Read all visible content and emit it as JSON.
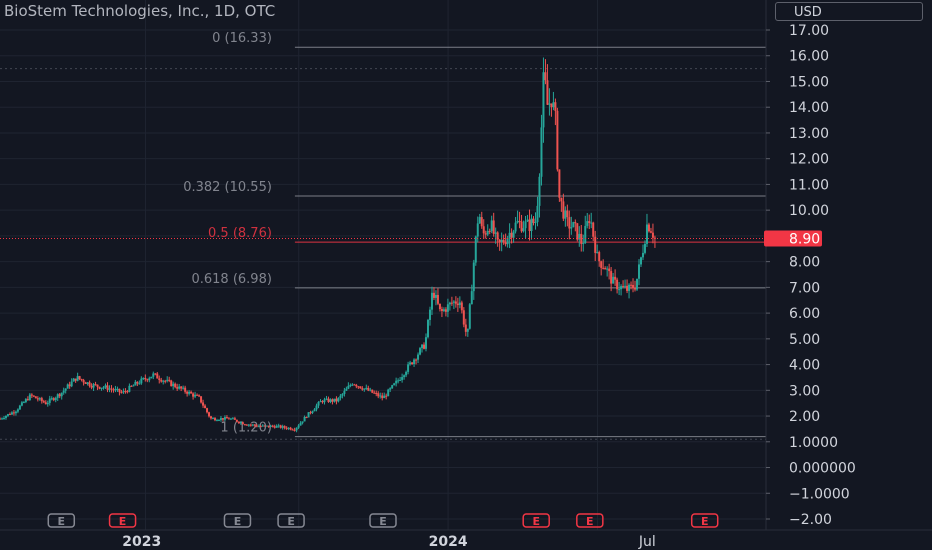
{
  "header": {
    "title": "BioStem Technologies, Inc., 1D, OTC",
    "currency": "USD"
  },
  "colors": {
    "background": "#131722",
    "up": "#26a69a",
    "down": "#ef5350",
    "grid": "#1f2431",
    "axis_text": "#d1d4dc",
    "fib_line": "#9598a1",
    "fib_mid": "#f23645",
    "last_price_badge": "#f23645"
  },
  "chart_data": {
    "type": "candlestick",
    "symbol": "BioStem Technologies, Inc.",
    "interval": "1D",
    "exchange": "OTC",
    "ylim": [
      -2.3,
      17.5
    ],
    "y_ticks": [
      {
        "value": 17,
        "label": "17.00"
      },
      {
        "value": 16,
        "label": "16.00"
      },
      {
        "value": 15,
        "label": "15.00"
      },
      {
        "value": 14,
        "label": "14.00"
      },
      {
        "value": 13,
        "label": "13.00"
      },
      {
        "value": 12,
        "label": "12.00"
      },
      {
        "value": 11,
        "label": "11.00"
      },
      {
        "value": 10,
        "label": "10.00"
      },
      {
        "value": 9,
        "label": "9.00"
      },
      {
        "value": 8,
        "label": "8.00"
      },
      {
        "value": 7,
        "label": "7.00"
      },
      {
        "value": 6,
        "label": "6.00"
      },
      {
        "value": 5,
        "label": "5.00"
      },
      {
        "value": 4,
        "label": "4.00"
      },
      {
        "value": 3,
        "label": "3.00"
      },
      {
        "value": 2,
        "label": "2.00"
      },
      {
        "value": 1,
        "label": "1.0000"
      },
      {
        "value": 0,
        "label": "0.000000"
      },
      {
        "value": -1,
        "label": "−1.0000"
      },
      {
        "value": -2,
        "label": "−2.00"
      }
    ],
    "x_labels": [
      {
        "label": "2023",
        "t": 0.185
      },
      {
        "label": "2024",
        "t": 0.585
      },
      {
        "label": "Jul",
        "t": 0.845
      }
    ],
    "last_price": {
      "value": 8.9,
      "label": "8.90"
    },
    "fibonacci": [
      {
        "ratio": "0",
        "price": 16.33,
        "label": "0 (16.33)"
      },
      {
        "ratio": "0.382",
        "price": 10.55,
        "label": "0.382 (10.55)"
      },
      {
        "ratio": "0.5",
        "price": 8.76,
        "label": "0.5 (8.76)"
      },
      {
        "ratio": "0.618",
        "price": 6.98,
        "label": "0.618 (6.98)"
      },
      {
        "ratio": "1",
        "price": 1.2,
        "label": "1 (1.20)"
      }
    ],
    "earnings_markers": [
      {
        "label": "E",
        "t": 0.08,
        "kind": "past"
      },
      {
        "label": "E",
        "t": 0.16,
        "kind": "future"
      },
      {
        "label": "E",
        "t": 0.31,
        "kind": "past"
      },
      {
        "label": "E",
        "t": 0.38,
        "kind": "past"
      },
      {
        "label": "E",
        "t": 0.5,
        "kind": "past"
      },
      {
        "label": "E",
        "t": 0.7,
        "kind": "future"
      },
      {
        "label": "E",
        "t": 0.77,
        "kind": "future"
      },
      {
        "label": "E",
        "t": 0.92,
        "kind": "future"
      }
    ],
    "price_path": [
      [
        0.0,
        1.9
      ],
      [
        0.02,
        2.2
      ],
      [
        0.04,
        2.8
      ],
      [
        0.06,
        2.5
      ],
      [
        0.08,
        2.9
      ],
      [
        0.1,
        3.5
      ],
      [
        0.12,
        3.2
      ],
      [
        0.14,
        3.1
      ],
      [
        0.16,
        2.9
      ],
      [
        0.18,
        3.3
      ],
      [
        0.2,
        3.6
      ],
      [
        0.22,
        3.3
      ],
      [
        0.24,
        3.0
      ],
      [
        0.26,
        2.7
      ],
      [
        0.275,
        1.9
      ],
      [
        0.3,
        1.9
      ],
      [
        0.32,
        1.7
      ],
      [
        0.34,
        1.6
      ],
      [
        0.36,
        1.6
      ],
      [
        0.385,
        1.5
      ],
      [
        0.4,
        2.0
      ],
      [
        0.42,
        2.6
      ],
      [
        0.44,
        2.6
      ],
      [
        0.46,
        3.3
      ],
      [
        0.48,
        3.0
      ],
      [
        0.5,
        2.7
      ],
      [
        0.52,
        3.4
      ],
      [
        0.54,
        4.2
      ],
      [
        0.555,
        4.8
      ],
      [
        0.565,
        6.9
      ],
      [
        0.575,
        6.0
      ],
      [
        0.59,
        6.4
      ],
      [
        0.6,
        6.5
      ],
      [
        0.61,
        5.0
      ],
      [
        0.62,
        8.5
      ],
      [
        0.625,
        10.0
      ],
      [
        0.63,
        9.0
      ],
      [
        0.64,
        9.5
      ],
      [
        0.65,
        8.6
      ],
      [
        0.66,
        8.9
      ],
      [
        0.675,
        9.5
      ],
      [
        0.69,
        9.4
      ],
      [
        0.7,
        9.6
      ],
      [
        0.705,
        12.0
      ],
      [
        0.71,
        15.3
      ],
      [
        0.715,
        14.0
      ],
      [
        0.72,
        14.4
      ],
      [
        0.725,
        13.5
      ],
      [
        0.73,
        10.5
      ],
      [
        0.74,
        9.5
      ],
      [
        0.75,
        9.3
      ],
      [
        0.76,
        8.7
      ],
      [
        0.77,
        9.8
      ],
      [
        0.78,
        8.1
      ],
      [
        0.79,
        7.8
      ],
      [
        0.8,
        7.2
      ],
      [
        0.81,
        7.0
      ],
      [
        0.82,
        6.9
      ],
      [
        0.83,
        7.1
      ],
      [
        0.84,
        8.6
      ],
      [
        0.845,
        9.5
      ],
      [
        0.85,
        9.3
      ],
      [
        0.855,
        8.9
      ]
    ]
  }
}
